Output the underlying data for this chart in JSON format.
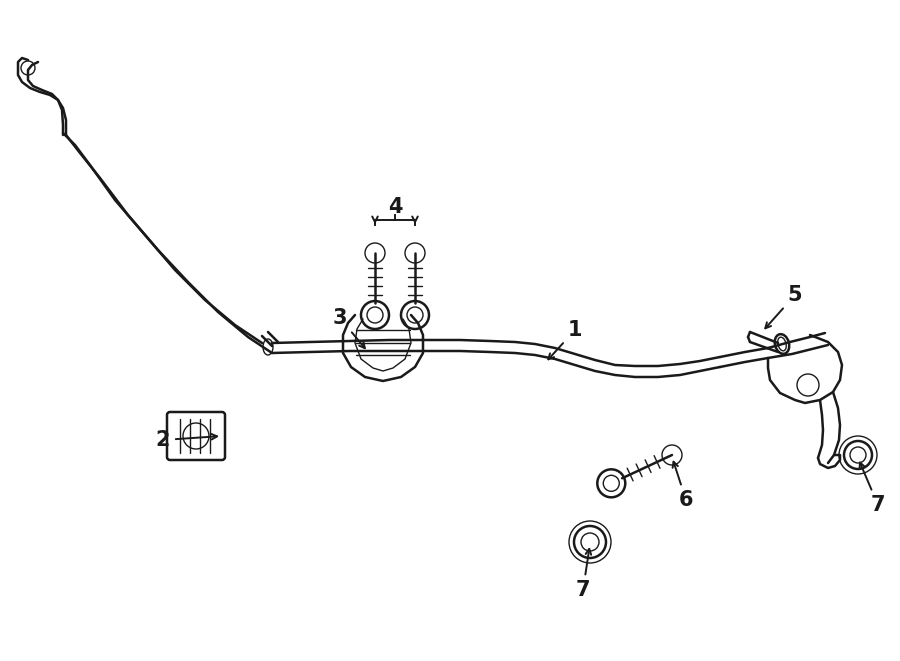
{
  "background_color": "#ffffff",
  "line_color": "#1a1a1a",
  "text_color": "#1a1a1a",
  "label_fontsize": 15,
  "lw_main": 1.8,
  "lw_thin": 1.0,
  "fig_w": 9.0,
  "fig_h": 6.61
}
